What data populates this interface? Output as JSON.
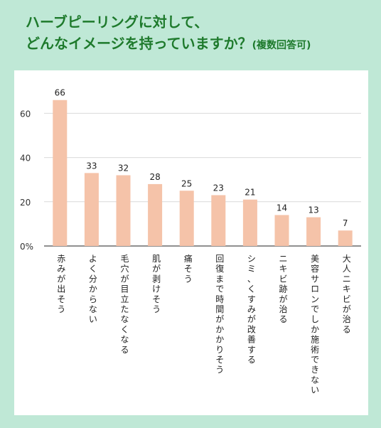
{
  "title": {
    "line1": "ハーブピーリングに対して、",
    "line2": "どんなイメージを持っていますか？",
    "note": "(複数回答可)"
  },
  "colors": {
    "background": "#bfe8d6",
    "title": "#1e7a2c",
    "bar": "#f5c3a9",
    "grid": "#d9d9d9",
    "axis": "#222222"
  },
  "chart_data": {
    "type": "bar",
    "categories": [
      "赤みが出そう",
      "よく分からない",
      "毛穴が目立たなくなる",
      "肌が剥けそう",
      "痛そう",
      "回復まで時間がかかりそう",
      "シミ、くすみが改善する",
      "ニキビ跡が治る",
      "美容サロンでしか施術できない",
      "大人ニキビが治る"
    ],
    "values": [
      66,
      33,
      32,
      28,
      25,
      23,
      21,
      14,
      13,
      7
    ],
    "yticks": [
      "0%",
      "20",
      "40",
      "60"
    ],
    "ytick_values": [
      0,
      20,
      40,
      60
    ],
    "ylim": [
      0,
      70
    ],
    "grid": true
  }
}
